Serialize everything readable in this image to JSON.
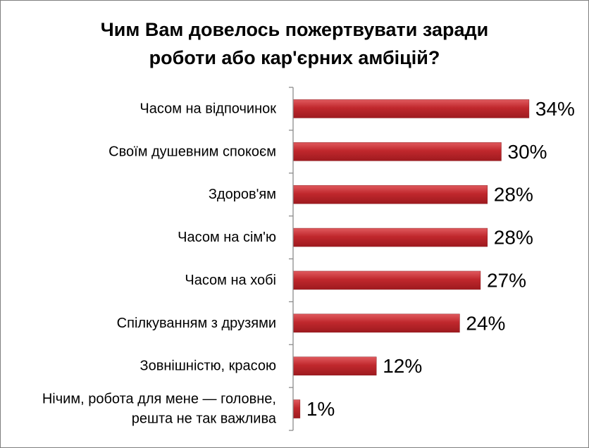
{
  "chart_data": {
    "type": "bar",
    "orientation": "horizontal",
    "title_lines": [
      "Чим Вам довелось пожертвувати заради",
      "роботи або кар'єрних амбіцій?"
    ],
    "categories": [
      [
        "Часом на відпочинок"
      ],
      [
        "Своїм душевним спокоєм"
      ],
      [
        "Здоров'ям"
      ],
      [
        "Часом на сім'ю"
      ],
      [
        "Часом на хобі"
      ],
      [
        "Спілкуванням з друзями"
      ],
      [
        "Зовнішністю, красою"
      ],
      [
        "Нічим, робота для мене — головне,",
        "решта не так важлива"
      ]
    ],
    "values": [
      34,
      30,
      28,
      28,
      27,
      24,
      12,
      1
    ],
    "value_labels": [
      "34%",
      "30%",
      "28%",
      "28%",
      "27%",
      "24%",
      "12%",
      "1%"
    ],
    "xlim": [
      0,
      40
    ],
    "bar_color": "#c0282d",
    "axis_color": "#8c8c8c",
    "grid": false,
    "legend": "none"
  }
}
